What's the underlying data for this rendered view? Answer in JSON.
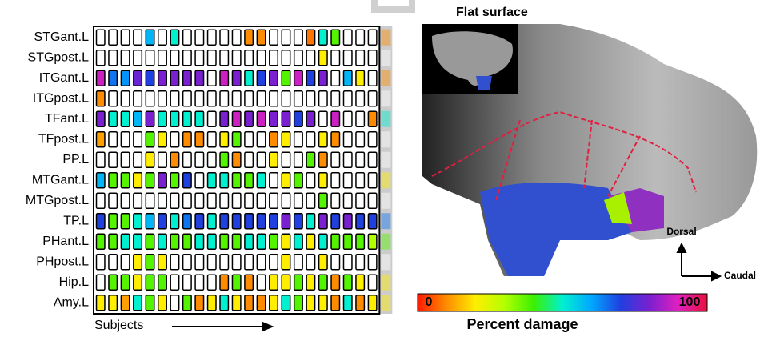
{
  "chart_data": [
    {
      "type": "heatmap",
      "xlabel": "Subjects",
      "categories": [
        "STGant.L",
        "STGpost.L",
        "ITGant.L",
        "ITGpost.L",
        "TFant.L",
        "TFpost.L",
        "PP.L",
        "MTGant.L",
        "MTGpost.L",
        "TP.L",
        "PHant.L",
        "PHpost.L",
        "Hip.L",
        "Amy.L"
      ],
      "x": [
        null,
        null,
        null,
        null,
        null,
        null,
        null,
        null,
        null,
        null,
        null,
        null,
        null,
        null,
        null,
        null,
        null,
        null,
        null,
        null,
        null,
        null,
        null
      ],
      "values": [
        [
          0,
          0,
          0,
          0,
          58,
          0,
          50,
          0,
          0,
          0,
          0,
          0,
          10,
          10,
          0,
          0,
          0,
          8,
          50,
          38,
          0,
          0,
          0
        ],
        [
          0,
          0,
          0,
          0,
          0,
          0,
          0,
          0,
          0,
          0,
          0,
          0,
          0,
          0,
          0,
          0,
          0,
          0,
          20,
          0,
          0,
          0,
          0
        ],
        [
          88,
          65,
          62,
          78,
          70,
          80,
          80,
          80,
          80,
          0,
          88,
          80,
          50,
          70,
          80,
          38,
          88,
          70,
          80,
          0,
          58,
          20,
          0
        ],
        [
          10,
          0,
          0,
          0,
          0,
          0,
          0,
          0,
          0,
          0,
          0,
          0,
          0,
          0,
          0,
          0,
          0,
          0,
          0,
          0,
          0,
          0,
          0
        ],
        [
          80,
          50,
          50,
          58,
          80,
          50,
          50,
          50,
          50,
          0,
          80,
          88,
          80,
          88,
          80,
          80,
          70,
          80,
          0,
          88,
          0,
          0,
          10
        ],
        [
          12,
          0,
          0,
          0,
          38,
          20,
          0,
          10,
          10,
          0,
          20,
          38,
          0,
          0,
          10,
          20,
          0,
          0,
          20,
          10,
          0,
          0,
          0
        ],
        [
          0,
          0,
          0,
          0,
          20,
          0,
          10,
          0,
          0,
          0,
          38,
          10,
          0,
          0,
          20,
          0,
          0,
          38,
          10,
          0,
          0,
          0,
          0
        ],
        [
          58,
          38,
          38,
          20,
          38,
          80,
          38,
          70,
          0,
          50,
          50,
          38,
          38,
          50,
          0,
          20,
          38,
          0,
          20,
          0,
          0,
          0,
          0
        ],
        [
          0,
          0,
          0,
          0,
          0,
          0,
          0,
          0,
          0,
          0,
          0,
          0,
          0,
          0,
          0,
          0,
          0,
          0,
          38,
          0,
          0,
          0,
          0
        ],
        [
          70,
          38,
          38,
          50,
          58,
          70,
          50,
          65,
          70,
          50,
          70,
          70,
          70,
          70,
          70,
          80,
          70,
          50,
          80,
          70,
          80,
          70,
          70
        ],
        [
          38,
          38,
          50,
          50,
          38,
          50,
          38,
          38,
          50,
          50,
          38,
          38,
          50,
          50,
          38,
          20,
          50,
          20,
          50,
          38,
          38,
          38,
          30
        ],
        [
          0,
          0,
          0,
          20,
          38,
          20,
          0,
          0,
          0,
          0,
          0,
          0,
          0,
          0,
          0,
          20,
          0,
          0,
          20,
          0,
          0,
          0,
          0
        ],
        [
          0,
          38,
          38,
          20,
          38,
          38,
          0,
          0,
          0,
          0,
          10,
          38,
          10,
          0,
          20,
          20,
          38,
          20,
          38,
          10,
          38,
          20,
          0
        ],
        [
          20,
          20,
          12,
          50,
          38,
          20,
          0,
          38,
          10,
          20,
          50,
          20,
          10,
          10,
          20,
          50,
          38,
          20,
          20,
          10,
          50,
          10,
          20
        ]
      ],
      "summary": [
        10,
        0,
        10,
        0,
        50,
        0,
        0,
        20,
        0,
        65,
        38,
        0,
        20,
        20
      ],
      "colormap": [
        "#ff1a00",
        "#ff8c00",
        "#ffee00",
        "#b4ff00",
        "#3cf000",
        "#00f0d0",
        "#00a8ff",
        "#2040e0",
        "#7a20d0",
        "#e020c0",
        "#e8103a"
      ],
      "colorbar": {
        "label": "Percent damage",
        "lim": [
          0,
          100
        ],
        "ticks": [
          0,
          100
        ]
      }
    },
    {
      "type": "image",
      "title": "Flat surface",
      "up": "Dorsal",
      "right": "Caudal"
    }
  ]
}
